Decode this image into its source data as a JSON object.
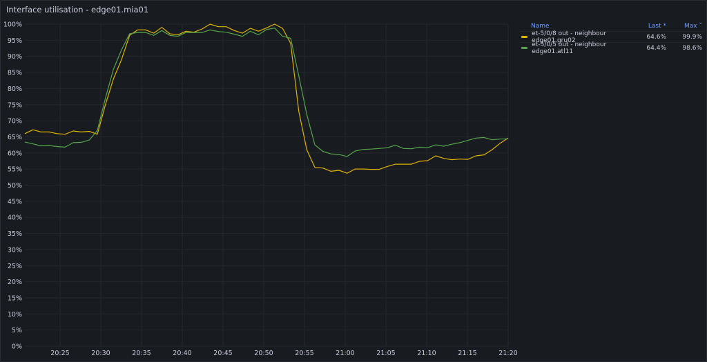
{
  "panel": {
    "title": "Interface utilisation - edge01.mia01"
  },
  "legend": {
    "headers": {
      "name": "Name",
      "last": "Last *",
      "max": "Max ˅"
    },
    "rows": [
      {
        "name": "et-5/0/8 out - neighbour edge01.gru02",
        "last": "64.6%",
        "max": "99.9%",
        "color": "#e0b400"
      },
      {
        "name": "et-5/0/5 out - neighbour edge01.atl11",
        "last": "64.4%",
        "max": "98.6%",
        "color": "#56a64b"
      }
    ]
  },
  "chart_data": {
    "type": "line",
    "title": "Interface utilisation - edge01.mia01",
    "xlabel": "",
    "ylabel": "",
    "ylim": [
      0,
      100
    ],
    "y_ticks": [
      "0%",
      "5%",
      "10%",
      "15%",
      "20%",
      "25%",
      "30%",
      "35%",
      "40%",
      "45%",
      "50%",
      "55%",
      "60%",
      "65%",
      "70%",
      "75%",
      "80%",
      "85%",
      "90%",
      "95%",
      "100%"
    ],
    "x_ticks": [
      "20:25",
      "20:30",
      "20:35",
      "20:40",
      "20:45",
      "20:50",
      "20:55",
      "21:00",
      "21:05",
      "21:10",
      "21:15",
      "21:20"
    ],
    "grid": true,
    "legend_position": "right",
    "x_start_minutes_before_first_tick": 4.3,
    "x_step_minutes": 1,
    "series": [
      {
        "name": "et-5/0/8 out - neighbour edge01.gru02",
        "color": "#e0b400",
        "values": [
          66.0,
          67.2,
          66.5,
          66.5,
          66.0,
          65.8,
          66.8,
          66.5,
          66.7,
          65.8,
          75,
          83,
          89,
          96.5,
          98.2,
          98.2,
          97.2,
          99.0,
          97.0,
          96.7,
          97.8,
          97.5,
          98.5,
          100.0,
          99.2,
          99.2,
          98.0,
          97.2,
          98.7,
          97.8,
          98.8,
          100.0,
          98.7,
          94.0,
          73,
          61,
          55.5,
          55.3,
          54.3,
          54.6,
          53.7,
          55.0,
          55.0,
          54.9,
          54.9,
          55.8,
          56.5,
          56.5,
          56.5,
          57.4,
          57.6,
          59.1,
          58.3,
          57.9,
          58.1,
          58.0,
          59.1,
          59.4,
          61.0,
          63.0,
          64.6
        ]
      },
      {
        "name": "et-5/0/5 out - neighbour edge01.atl11",
        "color": "#56a64b",
        "values": [
          63.4,
          62.8,
          62.2,
          62.3,
          62.0,
          61.8,
          63.2,
          63.3,
          64.0,
          67.0,
          77,
          86,
          92,
          97.0,
          97.4,
          97.4,
          96.5,
          98.0,
          96.5,
          96.2,
          97.4,
          97.4,
          97.4,
          98.2,
          97.7,
          97.5,
          96.9,
          96.2,
          97.8,
          96.7,
          98.3,
          98.8,
          96.2,
          95.6,
          84,
          72,
          62.5,
          60.5,
          59.7,
          59.5,
          58.9,
          60.6,
          61.1,
          61.2,
          61.4,
          61.6,
          62.4,
          61.4,
          61.3,
          61.8,
          61.6,
          62.5,
          62.1,
          62.7,
          63.2,
          63.9,
          64.6,
          64.8,
          64.1,
          64.3,
          64.4
        ]
      }
    ]
  }
}
